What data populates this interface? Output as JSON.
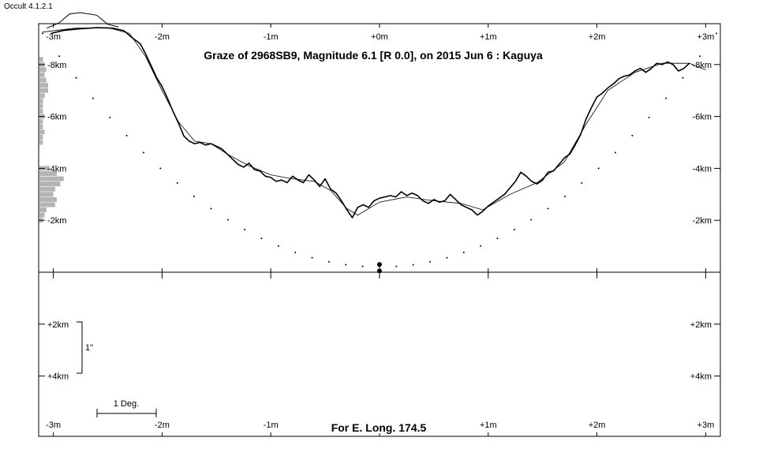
{
  "app": {
    "version_label": "Occult 4.1.2.1"
  },
  "chart_data": {
    "type": "line",
    "title": "Graze of  2968SB9,  Magnitude 6.1 [R 0.0],  on 2015 Jun  6  :  Kaguya",
    "footer": "For E. Long. 174.5",
    "x_unit": "minutes",
    "x_range": [
      -3.1,
      3.1
    ],
    "x_ticks": [
      -3,
      -2,
      -1,
      0,
      1,
      2,
      3
    ],
    "x_tick_labels": [
      "-3m",
      "-2m",
      "-1m",
      "+0m",
      "+1m",
      "+2m",
      "+3m"
    ],
    "upper_panel": {
      "y_unit": "km",
      "y_range": [
        -0.1,
        -9.3
      ],
      "y_ticks": [
        -2,
        -4,
        -6,
        -8
      ],
      "y_tick_labels": [
        "-2km",
        "-4km",
        "-6km",
        "-8km"
      ]
    },
    "lower_panel": {
      "y_unit": "km",
      "y_ticks": [
        2,
        4
      ],
      "y_tick_labels": [
        "+2km",
        "+4km"
      ]
    },
    "scale_bars": {
      "arcsec_label": "1\"",
      "degree_label": "1 Deg."
    },
    "limb_profile_detailed": {
      "name": "Kaguya limb profile",
      "points": [
        [
          -3.02,
          -9.2
        ],
        [
          -2.9,
          -9.32
        ],
        [
          -2.75,
          -9.38
        ],
        [
          -2.6,
          -9.42
        ],
        [
          -2.45,
          -9.4
        ],
        [
          -2.35,
          -9.3
        ],
        [
          -2.28,
          -9.05
        ],
        [
          -2.2,
          -8.8
        ],
        [
          -2.15,
          -8.4
        ],
        [
          -2.1,
          -7.95
        ],
        [
          -2.05,
          -7.5
        ],
        [
          -2.0,
          -7.15
        ],
        [
          -1.95,
          -6.7
        ],
        [
          -1.9,
          -6.2
        ],
        [
          -1.85,
          -5.75
        ],
        [
          -1.8,
          -5.25
        ],
        [
          -1.75,
          -5.05
        ],
        [
          -1.7,
          -4.95
        ],
        [
          -1.65,
          -5.0
        ],
        [
          -1.6,
          -4.9
        ],
        [
          -1.55,
          -4.95
        ],
        [
          -1.5,
          -4.85
        ],
        [
          -1.45,
          -4.75
        ],
        [
          -1.4,
          -4.55
        ],
        [
          -1.35,
          -4.35
        ],
        [
          -1.3,
          -4.15
        ],
        [
          -1.25,
          -4.05
        ],
        [
          -1.2,
          -4.2
        ],
        [
          -1.15,
          -3.95
        ],
        [
          -1.1,
          -3.9
        ],
        [
          -1.05,
          -3.7
        ],
        [
          -1.0,
          -3.65
        ],
        [
          -0.95,
          -3.5
        ],
        [
          -0.9,
          -3.55
        ],
        [
          -0.85,
          -3.45
        ],
        [
          -0.8,
          -3.7
        ],
        [
          -0.75,
          -3.55
        ],
        [
          -0.7,
          -3.45
        ],
        [
          -0.65,
          -3.75
        ],
        [
          -0.6,
          -3.55
        ],
        [
          -0.55,
          -3.3
        ],
        [
          -0.5,
          -3.6
        ],
        [
          -0.45,
          -3.2
        ],
        [
          -0.4,
          -3.05
        ],
        [
          -0.35,
          -2.75
        ],
        [
          -0.3,
          -2.4
        ],
        [
          -0.25,
          -2.1
        ],
        [
          -0.2,
          -2.5
        ],
        [
          -0.15,
          -2.6
        ],
        [
          -0.1,
          -2.5
        ],
        [
          -0.05,
          -2.75
        ],
        [
          0.0,
          -2.85
        ],
        [
          0.05,
          -2.9
        ],
        [
          0.1,
          -2.95
        ],
        [
          0.15,
          -2.9
        ],
        [
          0.2,
          -3.1
        ],
        [
          0.25,
          -2.95
        ],
        [
          0.3,
          -3.05
        ],
        [
          0.35,
          -2.95
        ],
        [
          0.4,
          -2.75
        ],
        [
          0.45,
          -2.65
        ],
        [
          0.5,
          -2.8
        ],
        [
          0.55,
          -2.7
        ],
        [
          0.6,
          -2.75
        ],
        [
          0.65,
          -3.0
        ],
        [
          0.7,
          -2.8
        ],
        [
          0.75,
          -2.6
        ],
        [
          0.8,
          -2.5
        ],
        [
          0.85,
          -2.4
        ],
        [
          0.9,
          -2.2
        ],
        [
          0.95,
          -2.35
        ],
        [
          1.0,
          -2.55
        ],
        [
          1.05,
          -2.7
        ],
        [
          1.1,
          -2.85
        ],
        [
          1.15,
          -3.0
        ],
        [
          1.2,
          -3.25
        ],
        [
          1.25,
          -3.5
        ],
        [
          1.3,
          -3.85
        ],
        [
          1.35,
          -3.7
        ],
        [
          1.4,
          -3.5
        ],
        [
          1.45,
          -3.4
        ],
        [
          1.5,
          -3.55
        ],
        [
          1.55,
          -3.85
        ],
        [
          1.6,
          -3.9
        ],
        [
          1.65,
          -4.15
        ],
        [
          1.7,
          -4.4
        ],
        [
          1.75,
          -4.55
        ],
        [
          1.8,
          -4.9
        ],
        [
          1.85,
          -5.3
        ],
        [
          1.9,
          -5.9
        ],
        [
          1.95,
          -6.35
        ],
        [
          2.0,
          -6.75
        ],
        [
          2.05,
          -6.9
        ],
        [
          2.1,
          -7.1
        ],
        [
          2.15,
          -7.25
        ],
        [
          2.2,
          -7.45
        ],
        [
          2.25,
          -7.55
        ],
        [
          2.3,
          -7.6
        ],
        [
          2.35,
          -7.75
        ],
        [
          2.4,
          -7.85
        ],
        [
          2.45,
          -7.7
        ],
        [
          2.5,
          -7.85
        ],
        [
          2.55,
          -8.05
        ],
        [
          2.6,
          -8.0
        ],
        [
          2.65,
          -8.1
        ],
        [
          2.7,
          -8.0
        ],
        [
          2.75,
          -7.75
        ],
        [
          2.8,
          -7.85
        ],
        [
          2.85,
          -8.05
        ]
      ]
    },
    "limb_profile_smooth": {
      "name": "mean limb profile",
      "points": [
        [
          -3.1,
          -9.25
        ],
        [
          -2.8,
          -9.4
        ],
        [
          -2.5,
          -9.42
        ],
        [
          -2.3,
          -9.2
        ],
        [
          -2.15,
          -8.3
        ],
        [
          -2.0,
          -7.0
        ],
        [
          -1.85,
          -5.8
        ],
        [
          -1.7,
          -5.05
        ],
        [
          -1.55,
          -4.95
        ],
        [
          -1.4,
          -4.55
        ],
        [
          -1.2,
          -4.1
        ],
        [
          -1.0,
          -3.75
        ],
        [
          -0.8,
          -3.6
        ],
        [
          -0.6,
          -3.5
        ],
        [
          -0.45,
          -3.15
        ],
        [
          -0.3,
          -2.45
        ],
        [
          -0.2,
          -2.2
        ],
        [
          0.0,
          -2.7
        ],
        [
          0.25,
          -2.9
        ],
        [
          0.5,
          -2.75
        ],
        [
          0.75,
          -2.65
        ],
        [
          0.95,
          -2.4
        ],
        [
          1.2,
          -3.0
        ],
        [
          1.45,
          -3.45
        ],
        [
          1.7,
          -4.25
        ],
        [
          1.9,
          -5.7
        ],
        [
          2.1,
          -7.0
        ],
        [
          2.35,
          -7.7
        ],
        [
          2.6,
          -8.05
        ],
        [
          2.85,
          -8.05
        ],
        [
          3.0,
          -7.8
        ]
      ]
    },
    "version_curve": [
      [
        -3.06,
        -9.4
      ],
      [
        -2.95,
        -9.6
      ],
      [
        -2.85,
        -9.95
      ],
      [
        -2.75,
        -10.0
      ],
      [
        -2.6,
        -9.9
      ],
      [
        -2.5,
        -9.55
      ],
      [
        -2.4,
        -9.45
      ]
    ],
    "limit_dots": {
      "name": "northern limit",
      "apex_x": 0.0,
      "apex_y": -0.2,
      "half_width_minutes": 3.1,
      "edge_y": -9.2,
      "count": 41
    },
    "observers": [
      {
        "x": 0.0,
        "y": -0.3
      },
      {
        "x": 0.0,
        "y": -0.05
      }
    ],
    "histogram": {
      "y": [
        -2.0,
        -2.2,
        -2.4,
        -2.6,
        -2.8,
        -3.0,
        -3.2,
        -3.4,
        -3.6,
        -3.8,
        -4.0,
        -5.0,
        -5.2,
        -5.4,
        -5.6,
        -5.8,
        -6.0,
        -6.2,
        -6.4,
        -6.6,
        -6.8,
        -7.0,
        -7.2,
        -7.4,
        -7.6,
        -7.8,
        -8.0,
        -8.2
      ],
      "counts": [
        2,
        3,
        4,
        9,
        10,
        8,
        9,
        12,
        14,
        10,
        6,
        2,
        2,
        3,
        2,
        2,
        3,
        2,
        2,
        2,
        3,
        5,
        5,
        4,
        3,
        4,
        3,
        2
      ]
    }
  }
}
